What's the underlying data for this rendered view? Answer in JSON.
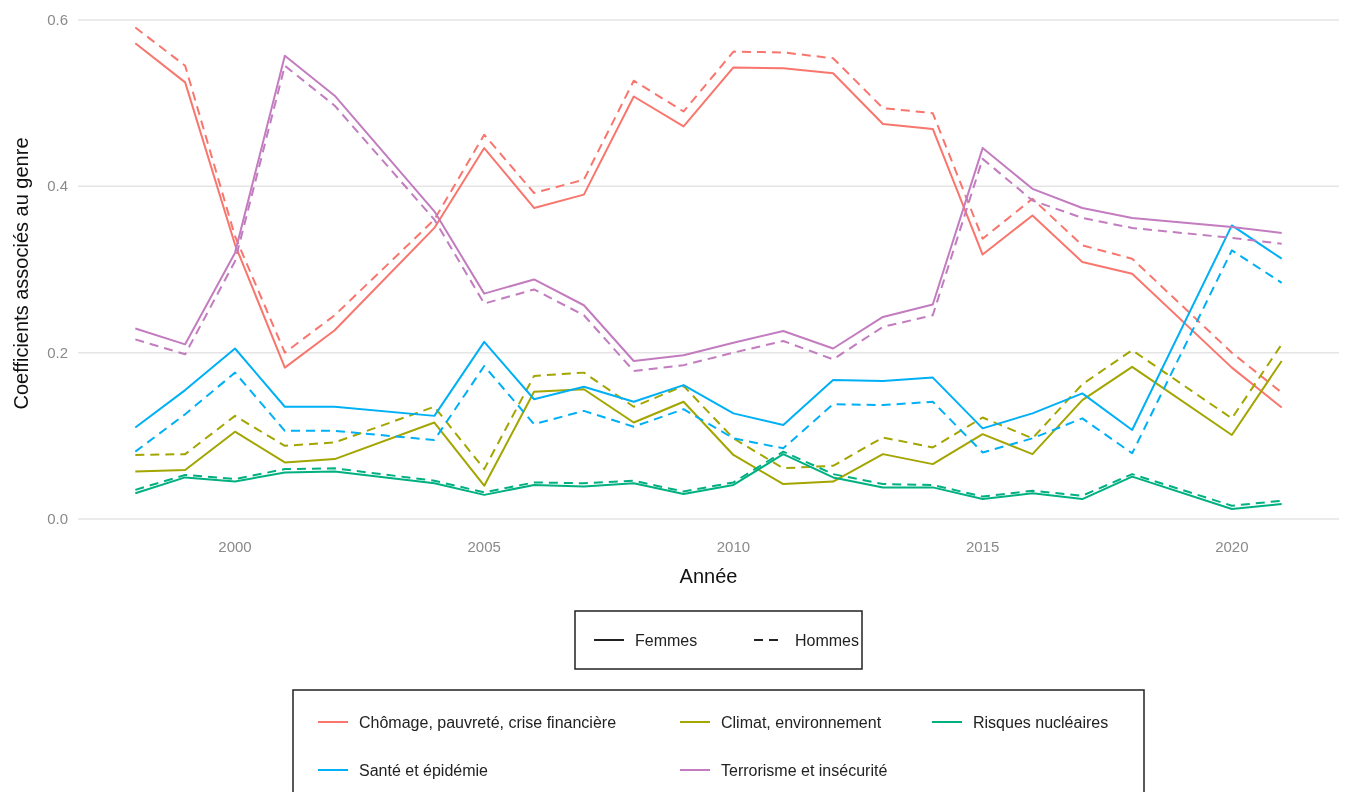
{
  "chart_data": {
    "type": "line",
    "xlabel": "Année",
    "ylabel": "Coefficients associés au genre",
    "x": [
      1998,
      1999,
      2000,
      2001,
      2002,
      2004,
      2005,
      2006,
      2007,
      2008,
      2009,
      2010,
      2011,
      2012,
      2013,
      2014,
      2015,
      2016,
      2017,
      2018,
      2020,
      2021
    ],
    "xlim": [
      1996.85,
      2022.15
    ],
    "xticks": [
      2000,
      2005,
      2010,
      2015,
      2020
    ],
    "ylim": [
      0,
      0.6
    ],
    "yticks": [
      {
        "value": 0,
        "label": "0.0"
      },
      {
        "value": 0.2,
        "label": "0.2"
      },
      {
        "value": 0.4,
        "label": "0.4"
      },
      {
        "value": 0.6,
        "label": "0.6"
      }
    ],
    "grid": "y",
    "legend": "bottom",
    "annotations": [
      "Femmes",
      "Hommes"
    ],
    "series": [
      {
        "name": "Chômage, pauvreté, crise financière",
        "color": "#f8766d",
        "line_style": "solid",
        "values": [
          0.572,
          0.525,
          0.33,
          0.182,
          0.227,
          0.35,
          0.446,
          0.374,
          0.39,
          0.508,
          0.472,
          0.543,
          0.542,
          0.536,
          0.475,
          0.469,
          0.318,
          0.365,
          0.309,
          0.295,
          0.182,
          0.134
        ]
      },
      {
        "color": "#f8766d",
        "line_style": "dashed",
        "values": [
          0.591,
          0.545,
          0.34,
          0.2,
          0.245,
          0.36,
          0.462,
          0.392,
          0.408,
          0.527,
          0.49,
          0.562,
          0.561,
          0.554,
          0.494,
          0.488,
          0.337,
          0.385,
          0.329,
          0.313,
          0.2,
          0.152
        ]
      },
      {
        "name": "Climat, environnement",
        "color": "#a3a500",
        "line_style": "solid",
        "values": [
          0.057,
          0.059,
          0.105,
          0.068,
          0.072,
          0.116,
          0.04,
          0.153,
          0.156,
          0.116,
          0.141,
          0.077,
          0.042,
          0.045,
          0.078,
          0.066,
          0.102,
          0.078,
          0.143,
          0.183,
          0.101,
          0.19
        ]
      },
      {
        "color": "#a3a500",
        "line_style": "dashed",
        "values": [
          0.077,
          0.078,
          0.124,
          0.088,
          0.092,
          0.135,
          0.06,
          0.172,
          0.176,
          0.135,
          0.16,
          0.097,
          0.061,
          0.064,
          0.098,
          0.086,
          0.122,
          0.097,
          0.162,
          0.203,
          0.121,
          0.21
        ]
      },
      {
        "name": "Risques nucléaires",
        "color": "#00b081",
        "line_style": "solid",
        "values": [
          0.031,
          0.05,
          0.045,
          0.056,
          0.057,
          0.043,
          0.029,
          0.041,
          0.039,
          0.043,
          0.03,
          0.041,
          0.078,
          0.05,
          0.038,
          0.038,
          0.024,
          0.031,
          0.024,
          0.051,
          0.012,
          0.018
        ]
      },
      {
        "color": "#00b081",
        "line_style": "dashed",
        "values": [
          0.035,
          0.053,
          0.048,
          0.06,
          0.061,
          0.046,
          0.032,
          0.044,
          0.043,
          0.046,
          0.033,
          0.044,
          0.081,
          0.054,
          0.042,
          0.041,
          0.027,
          0.034,
          0.028,
          0.054,
          0.016,
          0.022
        ]
      },
      {
        "name": "Santé et épidémie",
        "color": "#00b0f6",
        "line_style": "solid",
        "values": [
          0.11,
          0.155,
          0.205,
          0.135,
          0.135,
          0.124,
          0.213,
          0.144,
          0.159,
          0.141,
          0.161,
          0.127,
          0.113,
          0.167,
          0.166,
          0.17,
          0.109,
          0.127,
          0.151,
          0.107,
          0.353,
          0.313
        ]
      },
      {
        "color": "#00b0f6",
        "line_style": "dashed",
        "values": [
          0.081,
          0.126,
          0.176,
          0.106,
          0.106,
          0.095,
          0.184,
          0.114,
          0.13,
          0.111,
          0.132,
          0.097,
          0.085,
          0.138,
          0.137,
          0.141,
          0.08,
          0.097,
          0.121,
          0.079,
          0.323,
          0.284
        ]
      },
      {
        "name": "Terrorisme et insécurité",
        "color": "#c27cbf",
        "line_style": "solid",
        "values": [
          0.229,
          0.21,
          0.32,
          0.557,
          0.509,
          0.37,
          0.271,
          0.288,
          0.257,
          0.19,
          0.197,
          0.212,
          0.226,
          0.205,
          0.243,
          0.258,
          0.446,
          0.397,
          0.374,
          0.362,
          0.351,
          0.344
        ]
      },
      {
        "color": "#c27cbf",
        "line_style": "dashed",
        "values": [
          0.216,
          0.198,
          0.31,
          0.545,
          0.497,
          0.36,
          0.259,
          0.276,
          0.245,
          0.178,
          0.185,
          0.2,
          0.214,
          0.192,
          0.231,
          0.245,
          0.433,
          0.383,
          0.362,
          0.35,
          0.338,
          0.331
        ]
      }
    ]
  }
}
